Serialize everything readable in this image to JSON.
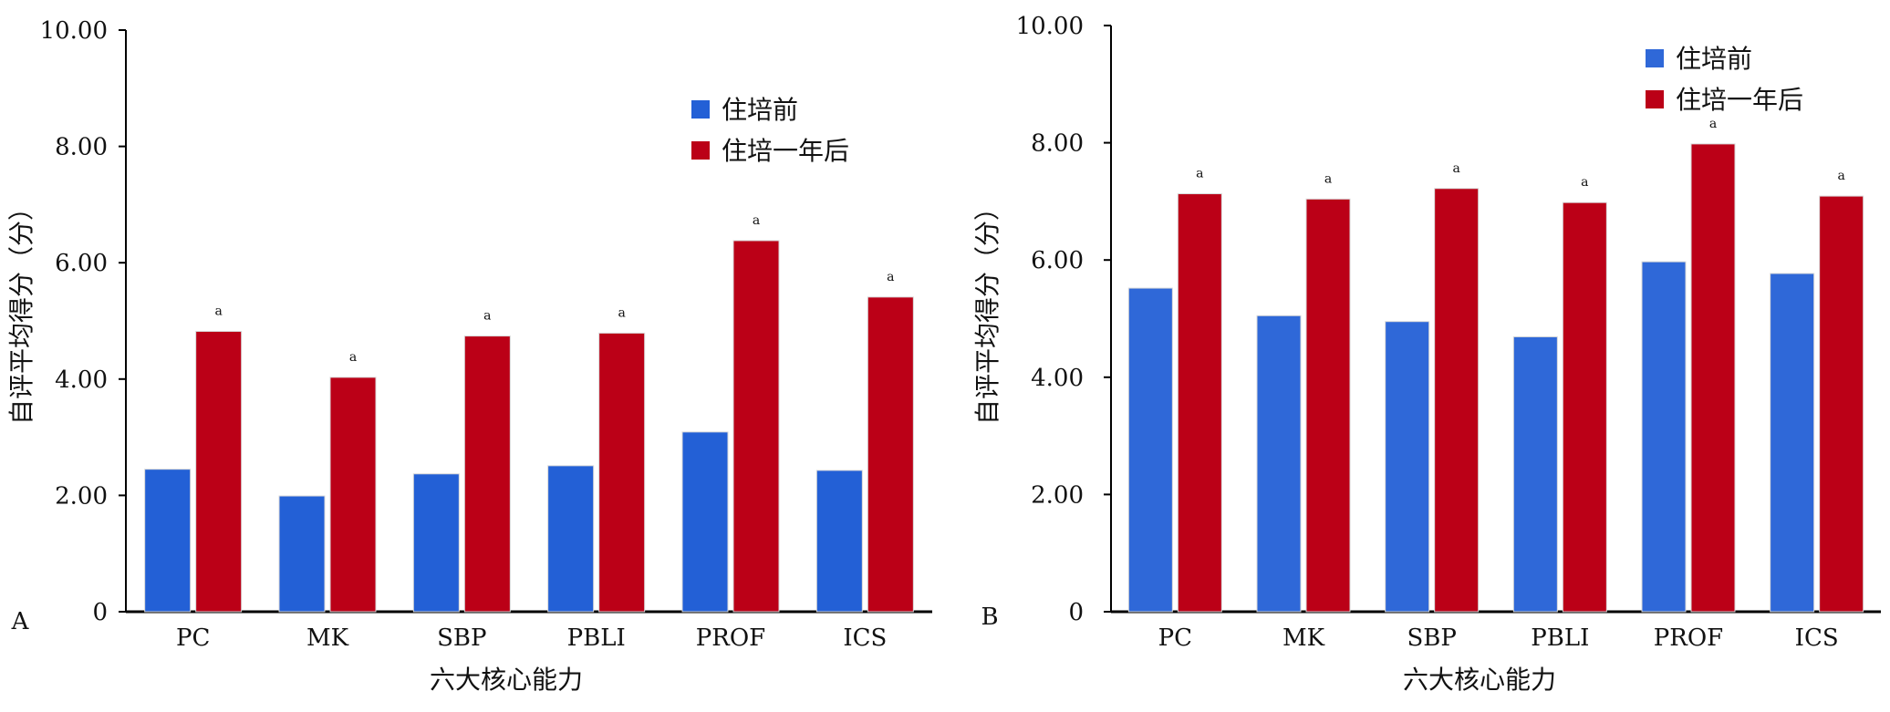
{
  "chart_data": [
    {
      "panel_label": "A",
      "type": "bar",
      "xlabel": "六大核心能力",
      "ylabel": "自评平均得分（分）",
      "ylim": [
        0,
        10
      ],
      "yticks": [
        "0",
        "2.00",
        "4.00",
        "6.00",
        "8.00",
        "10.00"
      ],
      "categories": [
        "PC",
        "MK",
        "SBP",
        "PBLI",
        "PROF",
        "ICS"
      ],
      "series": [
        {
          "name": "住培前",
          "color": "#2360d6",
          "values": [
            2.45,
            1.99,
            2.37,
            2.51,
            3.09,
            2.43
          ]
        },
        {
          "name": "住培一年后",
          "color": "#bb0017",
          "values": [
            4.82,
            4.03,
            4.74,
            4.79,
            6.38,
            5.41
          ]
        }
      ],
      "annotations": [
        "a",
        "a",
        "a",
        "a",
        "a",
        "a"
      ],
      "legend_position": "top-right"
    },
    {
      "panel_label": "B",
      "type": "bar",
      "xlabel": "六大核心能力",
      "ylabel": "自评平均得分（分）",
      "ylim": [
        0,
        10
      ],
      "yticks": [
        "0",
        "2.00",
        "4.00",
        "6.00",
        "8.00",
        "10.00"
      ],
      "categories": [
        "PC",
        "MK",
        "SBP",
        "PBLI",
        "PROF",
        "ICS"
      ],
      "series": [
        {
          "name": "住培前",
          "color": "#2f68d8",
          "values": [
            5.52,
            5.05,
            4.95,
            4.69,
            5.97,
            5.77
          ]
        },
        {
          "name": "住培一年后",
          "color": "#bb0017",
          "values": [
            7.13,
            7.04,
            7.22,
            6.98,
            7.98,
            7.09
          ]
        }
      ],
      "annotations": [
        "a",
        "a",
        "a",
        "a",
        "a",
        "a"
      ],
      "legend_position": "top-right"
    }
  ]
}
